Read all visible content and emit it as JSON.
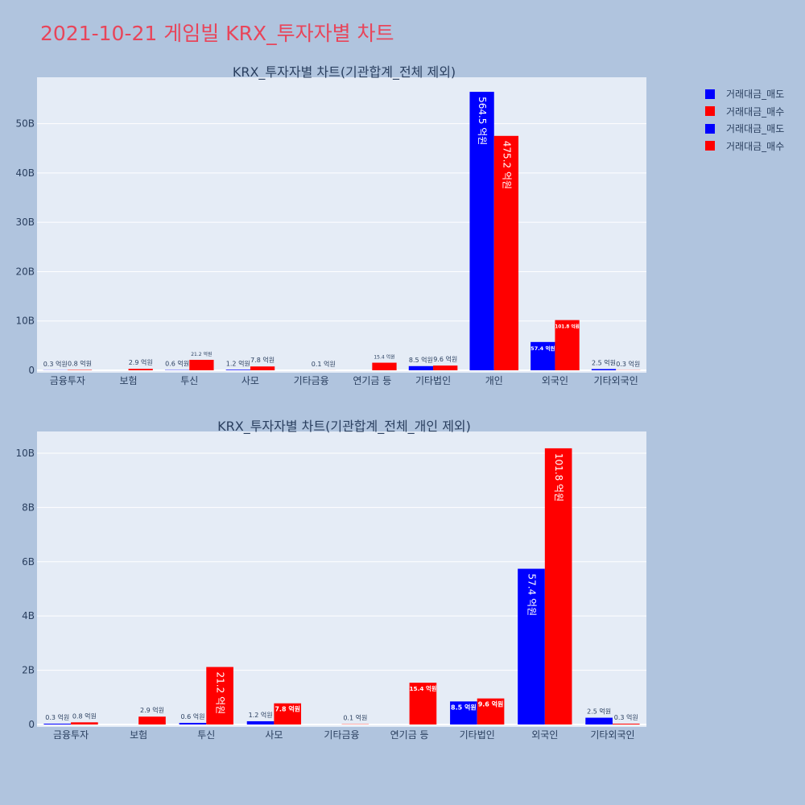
{
  "page": {
    "title": "2021-10-21 게임빌 KRX_투자자별 차트"
  },
  "legend": {
    "items": [
      {
        "label": "거래대금_매도",
        "color": "#0000ff"
      },
      {
        "label": "거래대금_매수",
        "color": "#ff0000"
      },
      {
        "label": "거래대금_매도",
        "color": "#0000ff"
      },
      {
        "label": "거래대금_매수",
        "color": "#ff0000"
      }
    ]
  },
  "colors": {
    "sell": "#0000ff",
    "buy": "#ff0000",
    "plot_bg": "#e5ecf6",
    "page_bg": "#b0c4de"
  },
  "chart_data": [
    {
      "type": "bar",
      "title": "KRX_투자자별 차트(기관합계_전체 제외)",
      "categories": [
        "금융투자",
        "보험",
        "투신",
        "사모",
        "기타금융",
        "연기금 등",
        "기타법인",
        "개인",
        "외국인",
        "기타외국인"
      ],
      "series": [
        {
          "name": "거래대금_매도",
          "values": [
            0.03,
            0,
            0.06,
            0.12,
            0,
            0,
            0.85,
            56.45,
            5.74,
            0.25
          ],
          "labels": [
            "0.3 억원",
            "",
            "0.6 억원",
            "1.2 억원",
            "",
            "",
            "8.5 억원",
            "564.5 억원",
            "57.4 억원",
            "2.5 억원"
          ]
        },
        {
          "name": "거래대금_매수",
          "values": [
            0.08,
            0.29,
            2.12,
            0.78,
            0.01,
            1.54,
            0.96,
            47.52,
            10.18,
            0.03
          ],
          "labels": [
            "0.8 억원",
            "2.9 억원",
            "21.2 억원",
            "7.8 억원",
            "0.1 억원",
            "15.4 억원",
            "9.6 억원",
            "475.2 억원",
            "101.8 억원",
            "0.3 억원"
          ]
        }
      ],
      "y_unit": "B",
      "yticks": [
        0,
        10,
        20,
        30,
        40,
        50
      ],
      "ylim": [
        0,
        59.4
      ],
      "grid": true,
      "legend_position": "top-right"
    },
    {
      "type": "bar",
      "title": "KRX_투자자별 차트(기관합계_전체_개인 제외)",
      "categories": [
        "금융투자",
        "보험",
        "투신",
        "사모",
        "기타금융",
        "연기금 등",
        "기타법인",
        "외국인",
        "기타외국인"
      ],
      "series": [
        {
          "name": "거래대금_매도",
          "values": [
            0.03,
            0,
            0.06,
            0.12,
            0,
            0,
            0.85,
            5.74,
            0.25
          ],
          "labels": [
            "0.3 억원",
            "",
            "0.6 억원",
            "1.2 억원",
            "",
            "",
            "8.5 억원",
            "57.4 억원",
            "2.5 억원"
          ]
        },
        {
          "name": "거래대금_매수",
          "values": [
            0.08,
            0.29,
            2.12,
            0.78,
            0.01,
            1.54,
            0.96,
            10.18,
            0.03
          ],
          "labels": [
            "0.8 억원",
            "2.9 억원",
            "21.2 억원",
            "7.8 억원",
            "0.1 억원",
            "15.4 억원",
            "9.6 억원",
            "101.8 억원",
            "0.3 억원"
          ]
        }
      ],
      "y_unit": "B",
      "yticks": [
        0,
        2,
        4,
        6,
        8,
        10
      ],
      "ylim": [
        0,
        10.8
      ],
      "grid": true
    }
  ]
}
